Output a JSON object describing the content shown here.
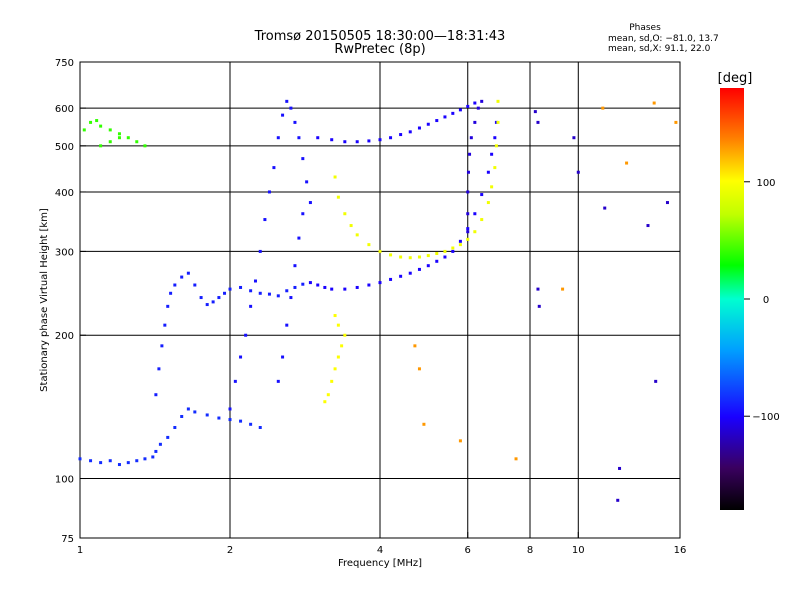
{
  "chart_data": {
    "type": "scatter",
    "title": "Tromsø 20150505 18:30:00—18:31:43",
    "subtitle": "RwPretec (8p)",
    "xlabel": "Frequency [MHz]",
    "ylabel": "Stationary phase Virtual Height [km]",
    "x_scale": "log",
    "y_scale": "log",
    "xlim": [
      1,
      16
    ],
    "ylim": [
      75,
      750
    ],
    "x_ticks": [
      1,
      2,
      4,
      6,
      8,
      10,
      16
    ],
    "x_tick_labels": [
      "1",
      "2",
      "4",
      "6",
      "8",
      "10",
      "16"
    ],
    "x_gridlines": [
      2,
      4,
      6,
      8,
      10
    ],
    "y_ticks": [
      75,
      100,
      200,
      300,
      400,
      500,
      600,
      750
    ],
    "y_tick_labels": [
      "75",
      "100",
      "200",
      "300",
      "400",
      "500",
      "600",
      "750"
    ],
    "y_gridlines": [
      100,
      200,
      300,
      400,
      500,
      600
    ],
    "grid": true,
    "phases_box": {
      "title": "Phases",
      "line1": "mean, sd,O: −81.0, 13.7",
      "line2": "mean, sd,X:  91.1, 22.0"
    },
    "colorbar": {
      "label": "[deg]",
      "ticks": [
        100,
        0,
        -100
      ],
      "tick_labels": [
        "100",
        "0",
        "−100"
      ],
      "range": [
        -180,
        180
      ]
    },
    "series": [
      {
        "color_phase": -85,
        "points": [
          [
            1.0,
            110
          ],
          [
            1.05,
            109
          ],
          [
            1.1,
            108
          ],
          [
            1.15,
            109
          ],
          [
            1.2,
            107
          ],
          [
            1.25,
            108
          ],
          [
            1.3,
            109
          ],
          [
            1.35,
            110
          ],
          [
            1.4,
            111
          ],
          [
            1.42,
            114
          ],
          [
            1.45,
            118
          ],
          [
            1.5,
            122
          ],
          [
            1.55,
            128
          ],
          [
            1.6,
            135
          ],
          [
            1.65,
            140
          ],
          [
            1.7,
            138
          ],
          [
            1.8,
            136
          ],
          [
            1.9,
            134
          ],
          [
            2.0,
            133
          ],
          [
            2.1,
            132
          ],
          [
            2.2,
            130
          ],
          [
            2.3,
            128
          ]
        ]
      },
      {
        "color_phase": -90,
        "points": [
          [
            1.42,
            150
          ],
          [
            1.44,
            170
          ],
          [
            1.46,
            190
          ],
          [
            1.48,
            210
          ],
          [
            1.5,
            230
          ],
          [
            1.52,
            245
          ],
          [
            1.55,
            255
          ],
          [
            1.6,
            265
          ],
          [
            1.65,
            270
          ],
          [
            1.7,
            255
          ],
          [
            1.75,
            240
          ],
          [
            1.8,
            232
          ],
          [
            1.85,
            235
          ],
          [
            1.9,
            240
          ],
          [
            1.95,
            245
          ],
          [
            2.0,
            250
          ],
          [
            2.1,
            252
          ],
          [
            2.2,
            248
          ],
          [
            2.3,
            245
          ],
          [
            2.4,
            244
          ],
          [
            2.5,
            242
          ],
          [
            2.6,
            248
          ],
          [
            2.7,
            252
          ],
          [
            2.8,
            256
          ]
        ]
      },
      {
        "color_phase": -95,
        "points": [
          [
            2.0,
            140
          ],
          [
            2.05,
            160
          ],
          [
            2.1,
            180
          ],
          [
            2.15,
            200
          ],
          [
            2.2,
            230
          ],
          [
            2.25,
            260
          ],
          [
            2.3,
            300
          ],
          [
            2.35,
            350
          ],
          [
            2.4,
            400
          ],
          [
            2.45,
            450
          ],
          [
            2.5,
            520
          ],
          [
            2.55,
            580
          ],
          [
            2.6,
            620
          ],
          [
            2.65,
            600
          ],
          [
            2.7,
            560
          ],
          [
            2.75,
            520
          ],
          [
            2.8,
            470
          ],
          [
            2.85,
            420
          ],
          [
            2.9,
            380
          ],
          [
            2.5,
            160
          ],
          [
            2.55,
            180
          ],
          [
            2.6,
            210
          ],
          [
            2.65,
            240
          ],
          [
            2.7,
            280
          ],
          [
            2.75,
            320
          ],
          [
            2.8,
            360
          ]
        ]
      },
      {
        "color_phase": -100,
        "points": [
          [
            2.9,
            258
          ],
          [
            3.0,
            255
          ],
          [
            3.1,
            252
          ],
          [
            3.2,
            250
          ],
          [
            3.4,
            250
          ],
          [
            3.6,
            252
          ],
          [
            3.8,
            255
          ],
          [
            4.0,
            258
          ],
          [
            4.2,
            262
          ],
          [
            4.4,
            266
          ],
          [
            4.6,
            270
          ],
          [
            4.8,
            275
          ],
          [
            5.0,
            280
          ],
          [
            5.2,
            286
          ],
          [
            5.4,
            292
          ],
          [
            5.6,
            300
          ],
          [
            5.8,
            315
          ],
          [
            6.0,
            335
          ],
          [
            6.2,
            360
          ],
          [
            6.4,
            395
          ],
          [
            6.6,
            440
          ],
          [
            6.7,
            480
          ],
          [
            6.8,
            520
          ],
          [
            6.85,
            560
          ]
        ]
      },
      {
        "color_phase": -100,
        "points": [
          [
            3.0,
            520
          ],
          [
            3.2,
            515
          ],
          [
            3.4,
            510
          ],
          [
            3.6,
            510
          ],
          [
            3.8,
            512
          ],
          [
            4.0,
            515
          ],
          [
            4.2,
            520
          ],
          [
            4.4,
            528
          ],
          [
            4.6,
            535
          ],
          [
            4.8,
            545
          ],
          [
            5.0,
            555
          ],
          [
            5.2,
            565
          ],
          [
            5.4,
            575
          ],
          [
            5.6,
            585
          ],
          [
            5.8,
            595
          ],
          [
            6.0,
            605
          ],
          [
            6.2,
            615
          ]
        ]
      },
      {
        "color_phase": -110,
        "points": [
          [
            6.0,
            330
          ],
          [
            6.0,
            360
          ],
          [
            6.0,
            400
          ],
          [
            6.02,
            440
          ],
          [
            6.05,
            480
          ],
          [
            6.1,
            520
          ],
          [
            6.2,
            560
          ],
          [
            6.3,
            600
          ],
          [
            6.4,
            620
          ]
        ]
      },
      {
        "color_phase": 95,
        "points": [
          [
            3.25,
            430
          ],
          [
            3.3,
            390
          ],
          [
            3.4,
            360
          ],
          [
            3.5,
            340
          ],
          [
            3.6,
            325
          ],
          [
            3.8,
            310
          ],
          [
            4.0,
            300
          ],
          [
            4.2,
            295
          ],
          [
            4.4,
            292
          ],
          [
            4.6,
            291
          ],
          [
            4.8,
            292
          ],
          [
            5.0,
            294
          ],
          [
            5.2,
            297
          ],
          [
            5.4,
            300
          ],
          [
            5.6,
            305
          ],
          [
            5.8,
            310
          ],
          [
            6.0,
            318
          ],
          [
            6.2,
            330
          ],
          [
            6.4,
            350
          ],
          [
            6.6,
            380
          ],
          [
            6.7,
            410
          ],
          [
            6.8,
            450
          ],
          [
            6.85,
            500
          ],
          [
            6.9,
            560
          ],
          [
            6.9,
            620
          ]
        ]
      },
      {
        "color_phase": 100,
        "points": [
          [
            3.1,
            145
          ],
          [
            3.15,
            150
          ],
          [
            3.2,
            160
          ],
          [
            3.25,
            170
          ],
          [
            3.3,
            180
          ],
          [
            3.35,
            190
          ],
          [
            3.4,
            200
          ],
          [
            3.3,
            210
          ],
          [
            3.25,
            220
          ]
        ]
      },
      {
        "color_phase": 40,
        "points": [
          [
            1.05,
            560
          ],
          [
            1.1,
            550
          ],
          [
            1.15,
            540
          ],
          [
            1.2,
            530
          ],
          [
            1.25,
            520
          ],
          [
            1.3,
            510
          ],
          [
            1.35,
            500
          ],
          [
            1.1,
            500
          ],
          [
            1.15,
            510
          ],
          [
            1.2,
            520
          ],
          [
            1.02,
            540
          ],
          [
            1.08,
            565
          ]
        ]
      },
      {
        "color_phase": 130,
        "points": [
          [
            4.7,
            190
          ],
          [
            4.8,
            170
          ],
          [
            4.9,
            130
          ],
          [
            5.8,
            120
          ],
          [
            7.5,
            110
          ],
          [
            9.3,
            250
          ],
          [
            11.2,
            600
          ],
          [
            12.5,
            460
          ],
          [
            14.2,
            615
          ],
          [
            15.7,
            560
          ]
        ]
      },
      {
        "color_phase": -115,
        "points": [
          [
            8.2,
            590
          ],
          [
            8.3,
            560
          ],
          [
            8.3,
            250
          ],
          [
            8.35,
            230
          ],
          [
            9.8,
            520
          ],
          [
            10.0,
            440
          ],
          [
            11.3,
            370
          ],
          [
            12.1,
            105
          ],
          [
            13.8,
            340
          ],
          [
            14.3,
            160
          ],
          [
            15.1,
            380
          ],
          [
            12.0,
            90
          ]
        ]
      }
    ]
  }
}
